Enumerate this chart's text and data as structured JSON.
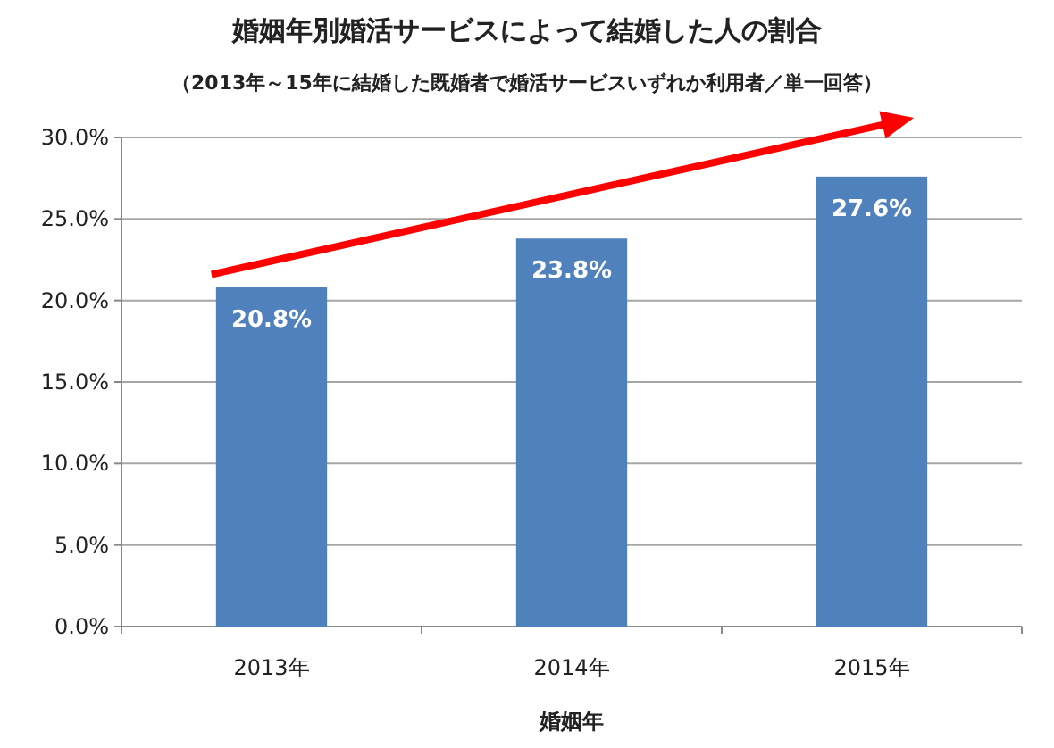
{
  "chart_data": {
    "type": "bar",
    "title": "婚姻年別婚活サービスによって結婚した人の割合",
    "subtitle": "（2013年～15年に結婚した既婚者で婚活サービスいずれか利用者／単一回答）",
    "xlabel": "婚姻年",
    "categories": [
      "2013年",
      "2014年",
      "2015年"
    ],
    "values": [
      20.8,
      23.8,
      27.6
    ],
    "value_labels": [
      "20.8%",
      "23.8%",
      "27.6%"
    ],
    "color": "#4f81bd",
    "ylim": [
      0,
      30
    ],
    "yticks": [
      {
        "value": 0,
        "label": "0.0%"
      },
      {
        "value": 5,
        "label": "5.0%"
      },
      {
        "value": 10,
        "label": "10.0%"
      },
      {
        "value": 15,
        "label": "15.0%"
      },
      {
        "value": 20,
        "label": "20.0%"
      },
      {
        "value": 25,
        "label": "25.0%"
      },
      {
        "value": 30,
        "label": "30.0%"
      }
    ],
    "grid": "y"
  }
}
